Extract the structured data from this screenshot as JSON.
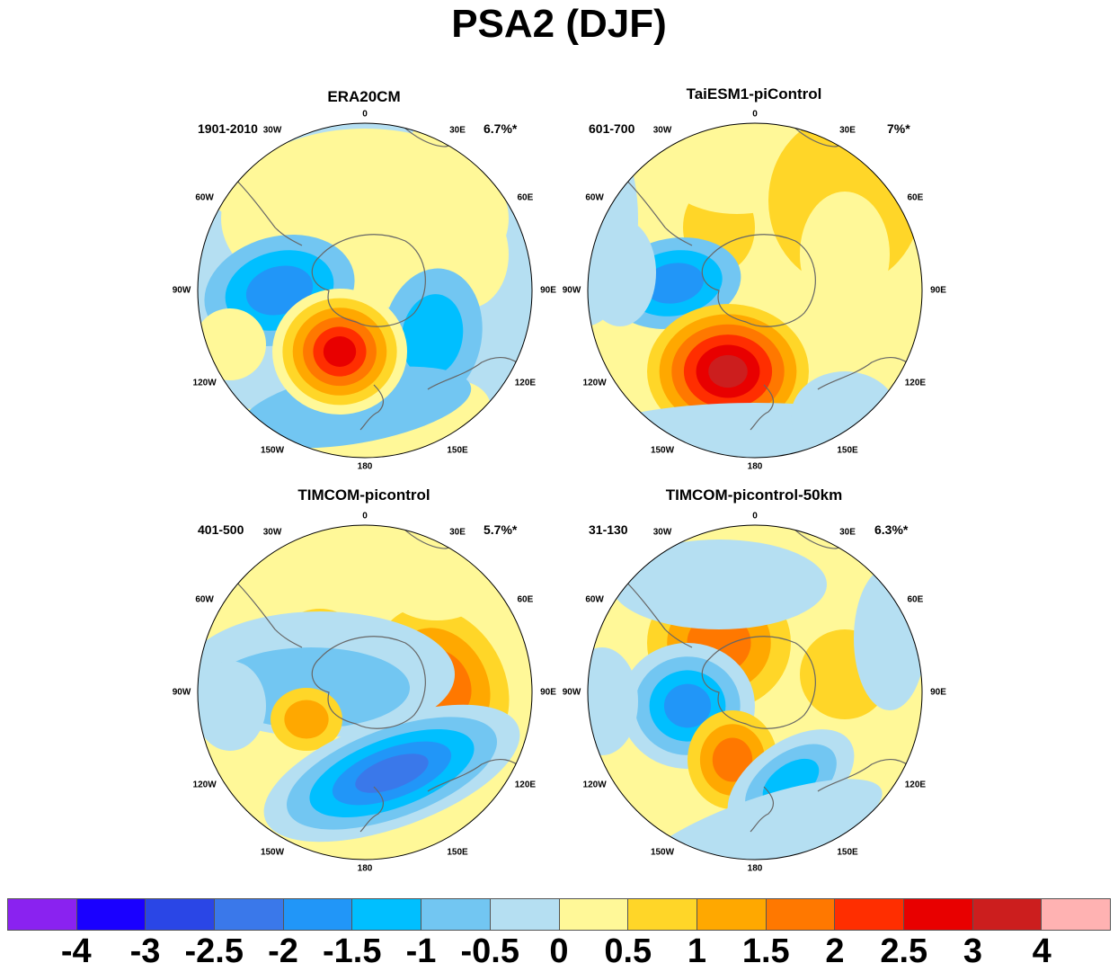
{
  "figure_title": "PSA2 (DJF)",
  "longitude_labels": [
    "0",
    "30E",
    "60E",
    "90E",
    "120E",
    "150E",
    "180",
    "150W",
    "120W",
    "90W",
    "60W",
    "30W"
  ],
  "panels": [
    {
      "title": "ERA20CM",
      "period": "1901-2010",
      "variance": "6.7%*"
    },
    {
      "title": "TaiESM1-piControl",
      "period": "601-700",
      "variance": "7%*"
    },
    {
      "title": "TIMCOM-picontrol",
      "period": "401-500",
      "variance": "5.7%*"
    },
    {
      "title": "TIMCOM-picontrol-50km",
      "period": "31-130",
      "variance": "6.3%*"
    }
  ],
  "colorbar": {
    "colors": [
      "#8a22f0",
      "#1a00ff",
      "#2a46e6",
      "#3a78ea",
      "#2196f8",
      "#00bfff",
      "#72c6f2",
      "#b5dff2",
      "#fff898",
      "#ffd628",
      "#ffa800",
      "#ff7800",
      "#ff2e00",
      "#e80000",
      "#cc1e1e",
      "#ffb2b2"
    ],
    "labels": [
      "-4",
      "-3",
      "-2.5",
      "-2",
      "-1.5",
      "-1",
      "-0.5",
      "0",
      "0.5",
      "1",
      "1.5",
      "2",
      "2.5",
      "3",
      "4"
    ]
  },
  "colors": {
    "land_outline": "#666666",
    "map_border": "#000000"
  }
}
